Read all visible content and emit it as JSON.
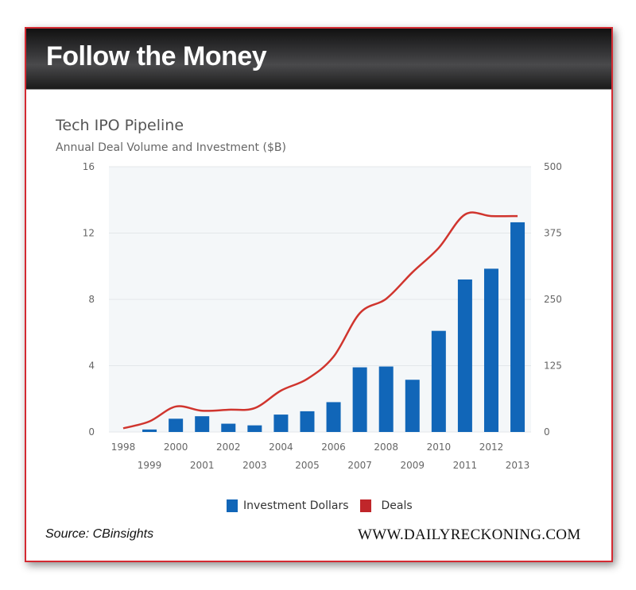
{
  "header": {
    "title": "Follow the Money"
  },
  "footer": {
    "source": "Source: CBinsights",
    "site": "WWW.DAILYRECKONING.COM"
  },
  "colors": {
    "bar": "#1166b8",
    "line": "#d0352e",
    "plot_bg": "#f4f7f9",
    "frame": "#d42a32"
  },
  "chart_data": {
    "type": "bar+line",
    "title": "Tech IPO Pipeline",
    "subtitle": "Annual Deal Volume and Investment ($B)",
    "categories": [
      "1998",
      "1999",
      "2000",
      "2001",
      "2002",
      "2003",
      "2004",
      "2005",
      "2006",
      "2007",
      "2008",
      "2009",
      "2010",
      "2011",
      "2012",
      "2013"
    ],
    "y_left": {
      "range": [
        0,
        16
      ],
      "ticks": [
        "0",
        "4",
        "8",
        "12",
        "16"
      ]
    },
    "y_right": {
      "range": [
        0,
        500
      ],
      "ticks": [
        "0",
        "125",
        "250",
        "375",
        "500"
      ]
    },
    "grid": true,
    "legend_placement": "bottom",
    "series": [
      {
        "name": "Investment Dollars",
        "type": "bar",
        "axis": "left",
        "color": "#1166b8",
        "values": [
          0,
          0.15,
          0.8,
          0.95,
          0.5,
          0.4,
          1.05,
          1.25,
          1.8,
          3.9,
          3.95,
          3.15,
          6.1,
          9.2,
          9.85,
          12.65
        ]
      },
      {
        "name": "Deals",
        "type": "line",
        "axis": "right",
        "color": "#d0352e",
        "values": [
          7,
          20,
          48,
          40,
          42,
          45,
          78,
          100,
          142,
          224,
          251,
          301,
          347,
          410,
          407,
          407
        ]
      }
    ]
  }
}
